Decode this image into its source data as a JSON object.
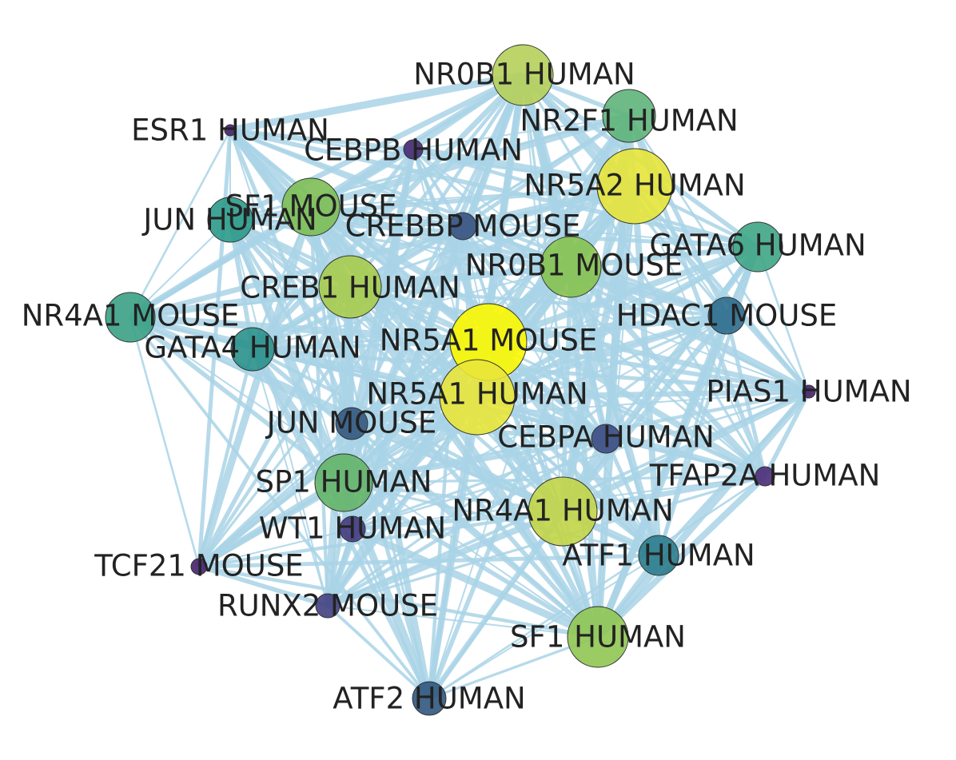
{
  "nodes": [
    {
      "label": "NR0B1 HUMAN"
    },
    {
      "label": "NR2F1 HUMAN"
    },
    {
      "label": "ESR1 HUMAN"
    },
    {
      "label": "CEBPB HUMAN"
    },
    {
      "label": "NR5A2 HUMAN"
    },
    {
      "label": "SF1 MOUSE"
    },
    {
      "label": "JUN HUMAN"
    },
    {
      "label": "CREBBP MOUSE"
    },
    {
      "label": "GATA6 HUMAN"
    },
    {
      "label": "NR0B1 MOUSE"
    },
    {
      "label": "CREB1 HUMAN"
    },
    {
      "label": "NR4A1 MOUSE"
    },
    {
      "label": "HDAC1 MOUSE"
    },
    {
      "label": "GATA4 HUMAN"
    },
    {
      "label": "NR5A1 MOUSE"
    },
    {
      "label": "PIAS1 HUMAN"
    },
    {
      "label": "NR5A1 HUMAN"
    },
    {
      "label": "JUN MOUSE"
    },
    {
      "label": "CEBPA HUMAN"
    },
    {
      "label": "TFAP2A HUMAN"
    },
    {
      "label": "SP1 HUMAN"
    },
    {
      "label": "NR4A1 HUMAN"
    },
    {
      "label": "WT1 HUMAN"
    },
    {
      "label": "ATF1 HUMAN"
    },
    {
      "label": "TCF21 MOUSE"
    },
    {
      "label": "RUNX2 MOUSE"
    },
    {
      "label": "SF1 HUMAN"
    },
    {
      "label": "ATF2 HUMAN"
    }
  ]
}
